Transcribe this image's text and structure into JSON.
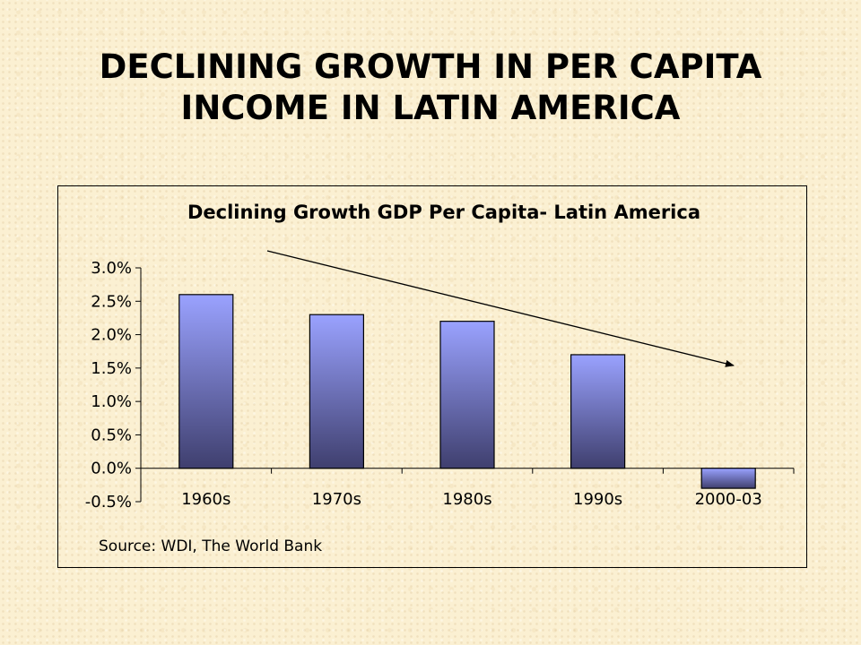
{
  "slide": {
    "title_line1": "DECLINING GROWTH IN PER CAPITA",
    "title_line2": "INCOME IN LATIN AMERICA"
  },
  "chart_data": {
    "type": "bar",
    "title": "Declining Growth GDP Per Capita- Latin America",
    "categories": [
      "1960s",
      "1970s",
      "1980s",
      "1990s",
      "2000-03"
    ],
    "values": [
      2.6,
      2.3,
      2.2,
      1.7,
      -0.3
    ],
    "ylim": [
      -0.5,
      3.0
    ],
    "yticks": [
      3.0,
      2.5,
      2.0,
      1.5,
      1.0,
      0.5,
      0.0,
      -0.5
    ],
    "ytick_labels": [
      "3.0%",
      "2.5%",
      "2.0%",
      "1.5%",
      "1.0%",
      "0.5%",
      "0.0%",
      "-0.5%"
    ],
    "xlabel": "",
    "ylabel": "",
    "grid": false,
    "legend": "none",
    "trend_arrow": "declining trend arrow from top-left toward 2000-03",
    "source": "Source: WDI, The World Bank",
    "colors": {
      "bar_top": "#9aa2ff",
      "bar_bottom": "#3f3f6e",
      "bar_stroke": "#000000",
      "axis": "#000000"
    }
  }
}
